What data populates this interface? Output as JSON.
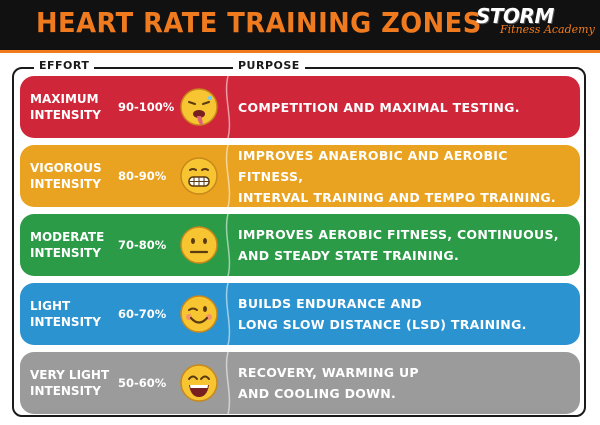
{
  "header": {
    "title": "HEART RATE TRAINING ZONES",
    "logo_word": "STORM",
    "logo_sub": "Fitness Academy",
    "background": "#111111",
    "accent": "#f07b1f"
  },
  "columns": {
    "effort": "EFFORT",
    "purpose": "PURPOSE"
  },
  "zones": [
    {
      "name": "MAXIMUM\nINTENSITY",
      "range": "90-100%",
      "purpose": "COMPETITION AND MAXIMAL TESTING.",
      "color": "#d0263a",
      "face_icon": "exhausted-face-icon"
    },
    {
      "name": "VIGOROUS\nINTENSITY",
      "range": "80-90%",
      "purpose": "IMPROVES ANAEROBIC AND AEROBIC FITNESS,\nINTERVAL TRAINING AND TEMPO TRAINING.",
      "color": "#e9a321",
      "face_icon": "grimacing-face-icon"
    },
    {
      "name": "MODERATE\nINTENSITY",
      "range": "70-80%",
      "purpose": "IMPROVES AEROBIC FITNESS, CONTINUOUS,\nAND STEADY STATE TRAINING.",
      "color": "#2b9b47",
      "face_icon": "neutral-face-icon"
    },
    {
      "name": "LIGHT\nINTENSITY",
      "range": "60-70%",
      "purpose": "BUILDS ENDURANCE AND\nLONG SLOW DISTANCE (LSD) TRAINING.",
      "color": "#2b93d0",
      "face_icon": "winking-face-icon"
    },
    {
      "name": "VERY LIGHT\nINTENSITY",
      "range": "50-60%",
      "purpose": "RECOVERY, WARMING UP\nAND COOLING DOWN.",
      "color": "#9b9b9b",
      "face_icon": "grinning-face-icon"
    }
  ]
}
